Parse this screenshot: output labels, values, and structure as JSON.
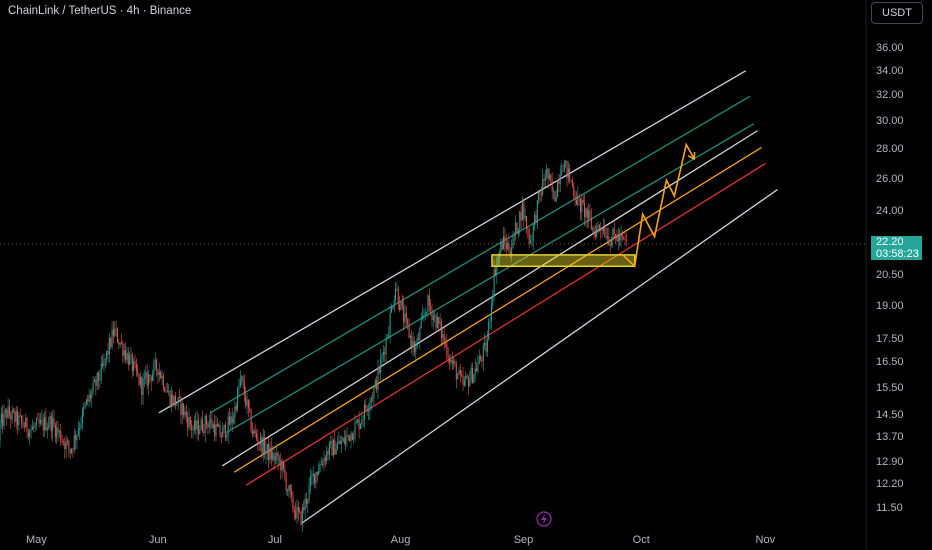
{
  "header": {
    "title": "ChainLink / TetherUS · 4h · Binance"
  },
  "currency_button": {
    "label": "USDT"
  },
  "price_tag": {
    "price": "22.20",
    "countdown": "03:58:23",
    "color": "#26a69a"
  },
  "colors": {
    "background": "#000000",
    "candle_up": "#26a69a",
    "candle_down": "#ef5350",
    "channel_outer": "#d1d4dc",
    "channel_teal": "#1e8c7e",
    "channel_orange": "#f7a21b",
    "channel_red": "#e0342c",
    "zone": "#e5d42a",
    "projection": "#f7a21b"
  },
  "icons": {
    "bolt": "lightning-bolt-icon"
  },
  "chart_data": {
    "type": "candlestick",
    "scale": "log",
    "xlabel_ticks": [
      "May",
      "Jun",
      "Jul",
      "Aug",
      "Sep",
      "Oct",
      "Nov"
    ],
    "ylabel_ticks": [
      "36.00",
      "34.00",
      "32.00",
      "30.00",
      "28.00",
      "26.00",
      "24.00",
      "20.50",
      "19.00",
      "17.50",
      "16.50",
      "15.50",
      "14.50",
      "13.70",
      "12.90",
      "12.20",
      "11.50"
    ],
    "ylim": [
      11.0,
      40.5
    ],
    "last_price": 22.2,
    "price_path": [
      [
        "2024-04-20",
        13.6
      ],
      [
        "2024-04-24",
        14.6
      ],
      [
        "2024-04-30",
        14.0
      ],
      [
        "2024-05-05",
        14.3
      ],
      [
        "2024-05-10",
        13.3
      ],
      [
        "2024-05-14",
        14.9
      ],
      [
        "2024-05-18",
        16.2
      ],
      [
        "2024-05-21",
        17.9
      ],
      [
        "2024-05-25",
        16.6
      ],
      [
        "2024-05-28",
        15.6
      ],
      [
        "2024-06-01",
        16.4
      ],
      [
        "2024-06-04",
        15.2
      ],
      [
        "2024-06-07",
        14.8
      ],
      [
        "2024-06-10",
        14.0
      ],
      [
        "2024-06-14",
        14.3
      ],
      [
        "2024-06-17",
        13.8
      ],
      [
        "2024-06-20",
        14.4
      ],
      [
        "2024-06-22",
        15.9
      ],
      [
        "2024-06-25",
        13.9
      ],
      [
        "2024-06-29",
        13.2
      ],
      [
        "2024-07-02",
        12.9
      ],
      [
        "2024-07-05",
        11.6
      ],
      [
        "2024-07-07",
        11.2
      ],
      [
        "2024-07-10",
        12.4
      ],
      [
        "2024-07-14",
        13.3
      ],
      [
        "2024-07-18",
        13.6
      ],
      [
        "2024-07-22",
        14.3
      ],
      [
        "2024-07-26",
        15.6
      ],
      [
        "2024-07-29",
        17.8
      ],
      [
        "2024-07-31",
        20.0
      ],
      [
        "2024-08-02",
        18.5
      ],
      [
        "2024-08-05",
        17.0
      ],
      [
        "2024-08-08",
        19.2
      ],
      [
        "2024-08-11",
        18.1
      ],
      [
        "2024-08-14",
        16.6
      ],
      [
        "2024-08-17",
        15.6
      ],
      [
        "2024-08-20",
        16.2
      ],
      [
        "2024-08-23",
        17.2
      ],
      [
        "2024-08-25",
        20.8
      ],
      [
        "2024-08-27",
        22.3
      ],
      [
        "2024-08-29",
        21.9
      ],
      [
        "2024-09-01",
        24.3
      ],
      [
        "2024-09-03",
        22.3
      ],
      [
        "2024-09-05",
        24.6
      ],
      [
        "2024-09-07",
        26.6
      ],
      [
        "2024-09-09",
        24.8
      ],
      [
        "2024-09-11",
        27.3
      ],
      [
        "2024-09-13",
        26.1
      ],
      [
        "2024-09-15",
        24.6
      ],
      [
        "2024-09-17",
        24.0
      ],
      [
        "2024-09-19",
        22.9
      ],
      [
        "2024-09-21",
        23.3
      ],
      [
        "2024-09-23",
        22.5
      ],
      [
        "2024-09-25",
        22.6
      ],
      [
        "2024-09-27",
        22.2
      ]
    ],
    "channel": {
      "lines": [
        {
          "role": "outer-upper",
          "from": [
            "2024-06-01",
            14.6
          ],
          "to": [
            "2024-10-27",
            34.1
          ],
          "color": "#d1d4dc"
        },
        {
          "role": "teal-1",
          "from": [
            "2024-06-14",
            14.6
          ],
          "to": [
            "2024-10-28",
            32.0
          ],
          "color": "#1e8c7e"
        },
        {
          "role": "teal-2",
          "from": [
            "2024-06-18",
            13.9
          ],
          "to": [
            "2024-10-29",
            29.9
          ],
          "color": "#1e8c7e"
        },
        {
          "role": "mid-white",
          "from": [
            "2024-06-17",
            12.8
          ],
          "to": [
            "2024-10-30",
            29.4
          ],
          "color": "#d1d4dc"
        },
        {
          "role": "orange",
          "from": [
            "2024-06-20",
            12.6
          ],
          "to": [
            "2024-10-31",
            28.2
          ],
          "color": "#f7a21b"
        },
        {
          "role": "red",
          "from": [
            "2024-06-23",
            12.2
          ],
          "to": [
            "2024-11-01",
            27.1
          ],
          "color": "#e0342c"
        },
        {
          "role": "outer-lower",
          "from": [
            "2024-07-07",
            11.1
          ],
          "to": [
            "2024-11-04",
            25.4
          ],
          "color": "#d1d4dc"
        }
      ]
    },
    "support_zone": {
      "from_date": "2024-08-24",
      "to_date": "2024-09-29",
      "low": 21.0,
      "high": 21.6,
      "color": "#e5d42a"
    },
    "projection": [
      [
        "2024-09-26",
        21.6
      ],
      [
        "2024-09-29",
        21.0
      ],
      [
        "2024-10-01",
        23.9
      ],
      [
        "2024-10-04",
        22.6
      ],
      [
        "2024-10-07",
        26.0
      ],
      [
        "2024-10-09",
        25.0
      ],
      [
        "2024-10-12",
        28.4
      ],
      [
        "2024-10-14",
        27.4
      ]
    ]
  }
}
